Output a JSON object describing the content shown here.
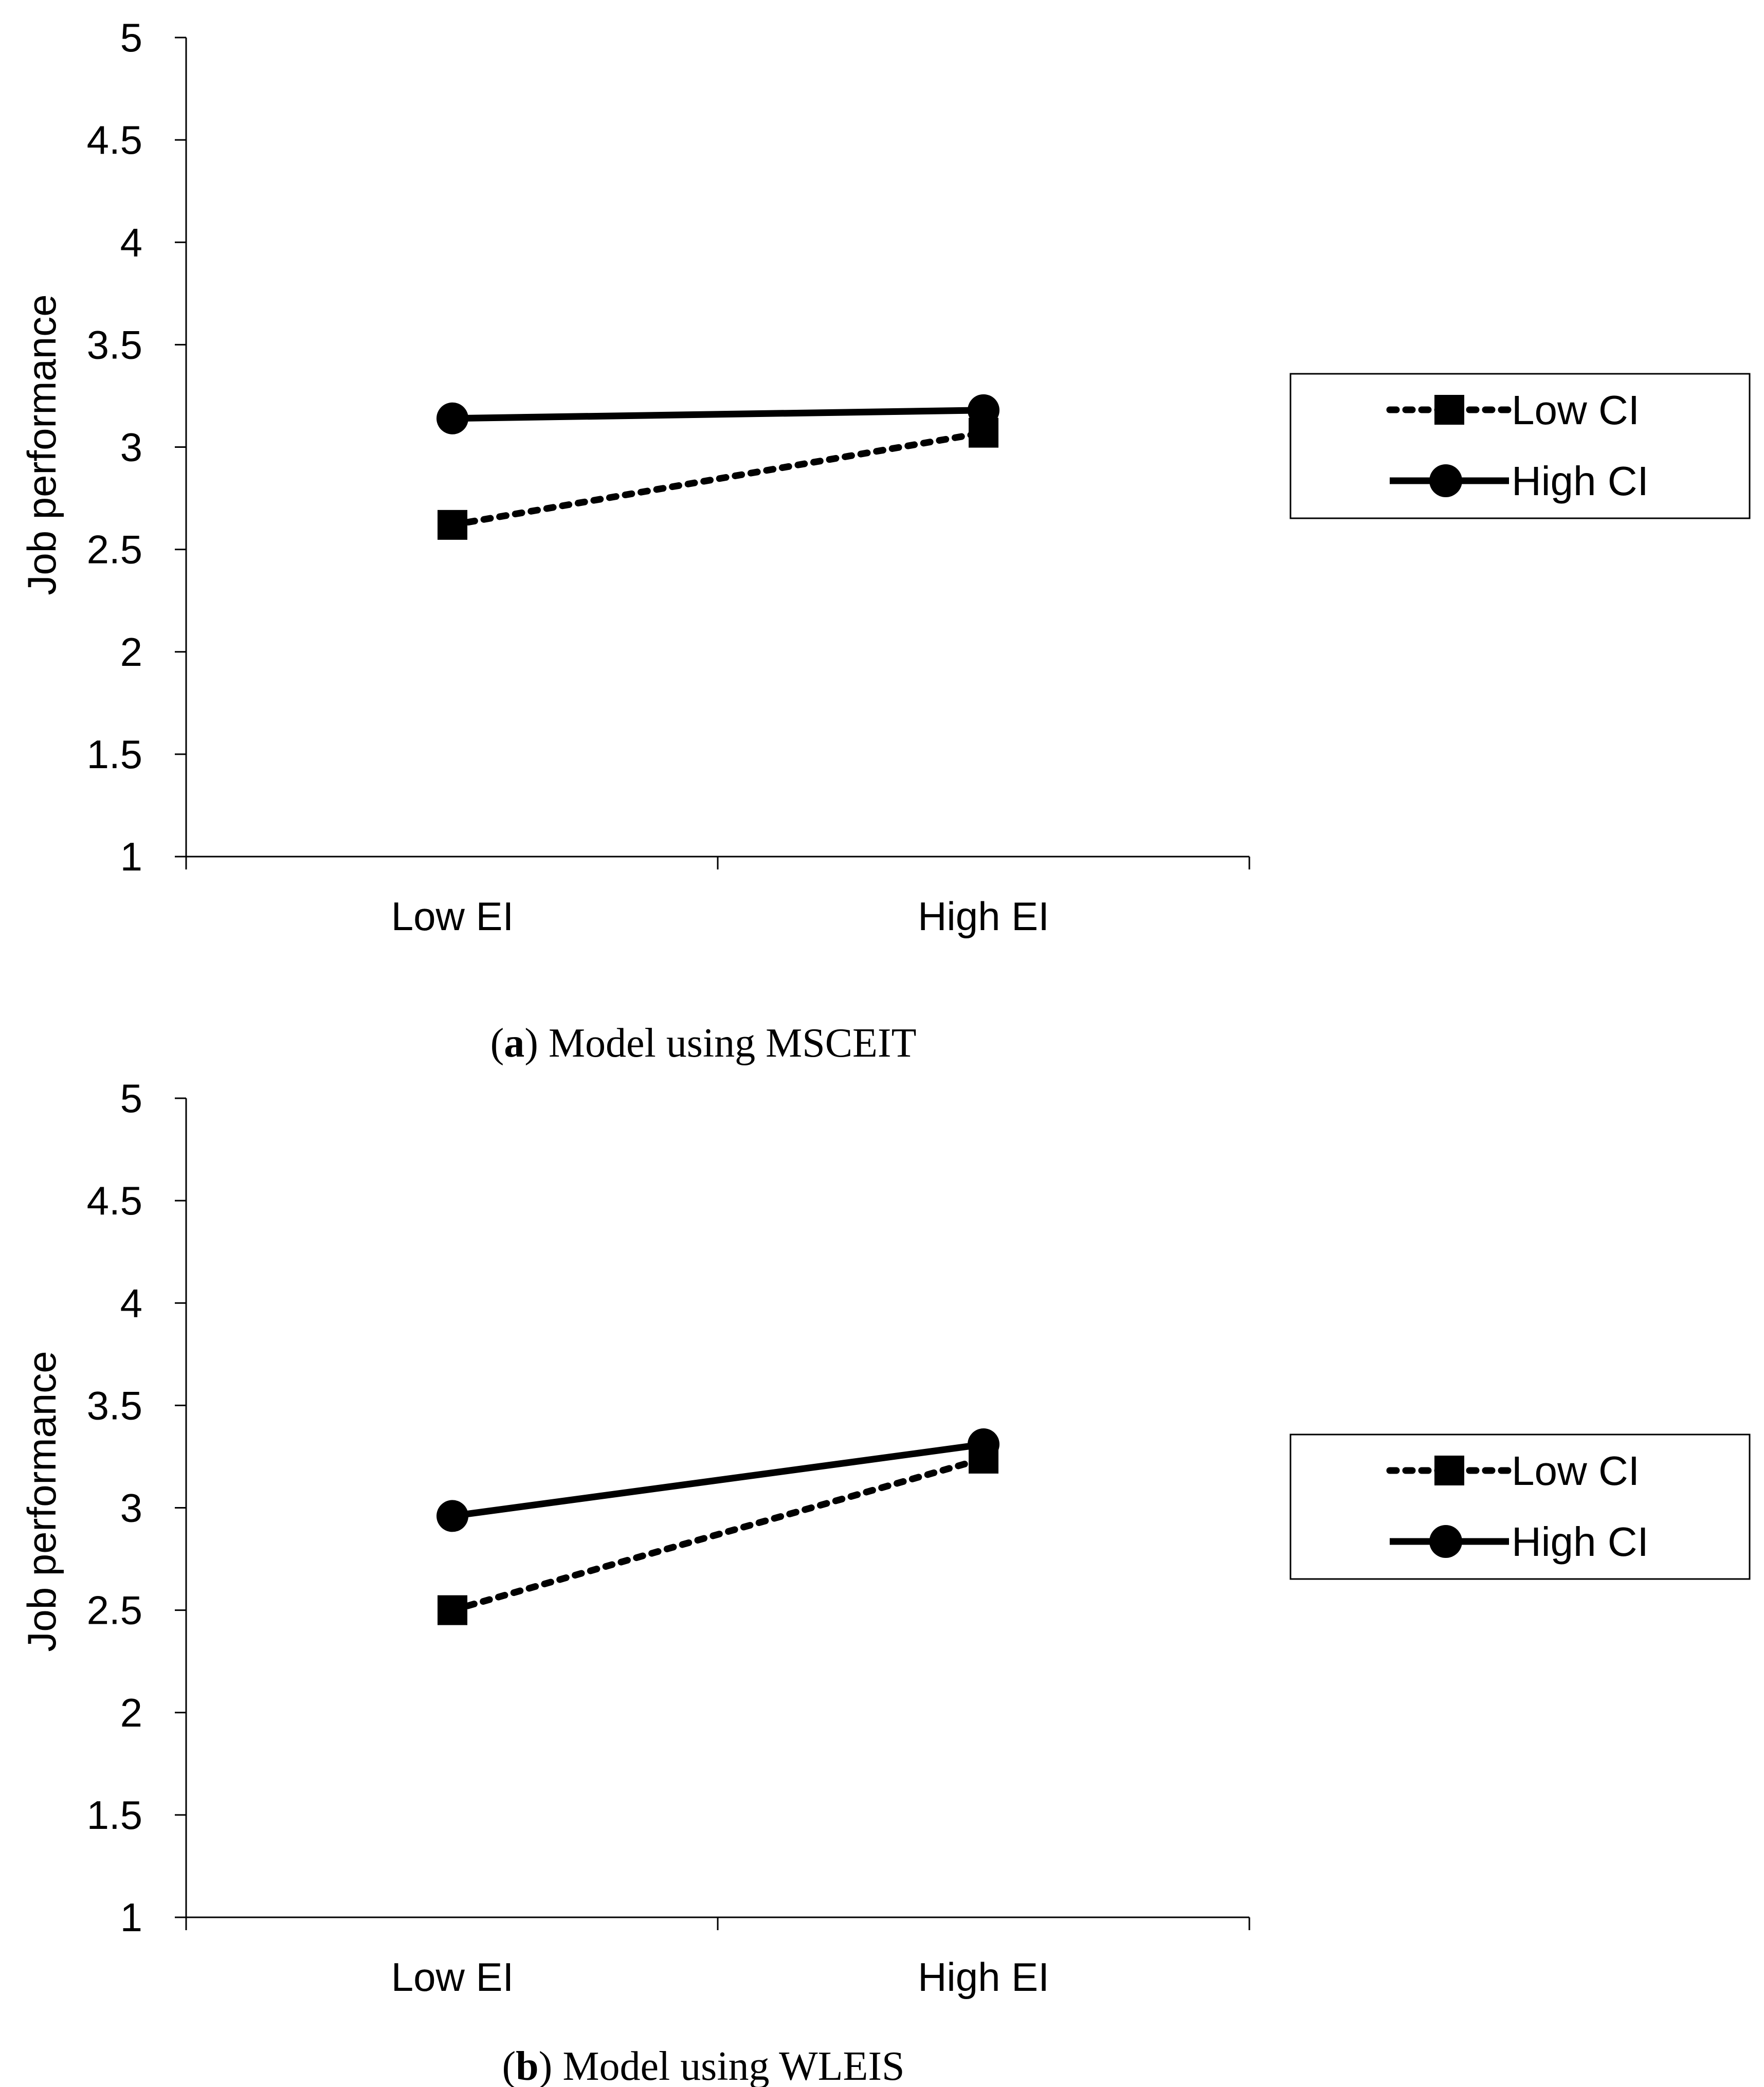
{
  "chart_data": [
    {
      "type": "line",
      "caption": {
        "open": "(",
        "letter": "a",
        "rest": ") Model using MSCEIT"
      },
      "ylabel": "Job performance",
      "xlabel": "",
      "ylim": [
        1,
        5
      ],
      "yticks": [
        "1",
        "1.5",
        "2",
        "2.5",
        "3",
        "3.5",
        "4",
        "4.5",
        "5"
      ],
      "categories": [
        "Low EI",
        "High EI"
      ],
      "legend_position": "right",
      "series": [
        {
          "name": "Low CI",
          "style": "dotted",
          "marker": "square",
          "color": "#000000",
          "values": [
            2.62,
            3.07
          ]
        },
        {
          "name": "High CI",
          "style": "solid",
          "marker": "circle",
          "color": "#000000",
          "values": [
            3.14,
            3.18
          ]
        }
      ]
    },
    {
      "type": "line",
      "caption": {
        "open": "(",
        "letter": "b",
        "rest": ") Model using WLEIS"
      },
      "ylabel": "Job performance",
      "xlabel": "",
      "ylim": [
        1,
        5
      ],
      "yticks": [
        "1",
        "1.5",
        "2",
        "2.5",
        "3",
        "3.5",
        "4",
        "4.5",
        "5"
      ],
      "categories": [
        "Low EI",
        "High EI"
      ],
      "legend_position": "right",
      "series": [
        {
          "name": "Low CI",
          "style": "dotted",
          "marker": "square",
          "color": "#000000",
          "values": [
            2.5,
            3.24
          ]
        },
        {
          "name": "High CI",
          "style": "solid",
          "marker": "circle",
          "color": "#000000",
          "values": [
            2.96,
            3.31
          ]
        }
      ]
    }
  ]
}
